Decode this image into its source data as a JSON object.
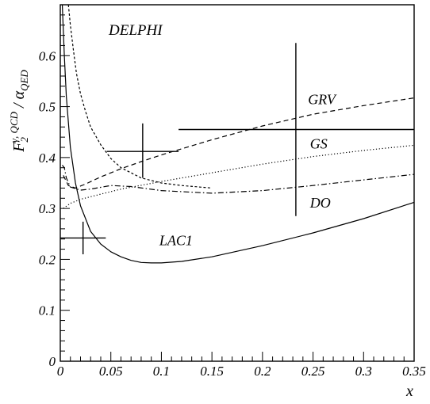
{
  "chart_data": {
    "type": "line",
    "title": "DELPHI",
    "xlabel": "x",
    "ylabel": {
      "main": "F",
      "sub": "2",
      "sup": "γ, QCD",
      "sep": " / α",
      "alpha_sub": "QED"
    },
    "xlim": [
      0,
      0.35
    ],
    "ylim": [
      0,
      0.7
    ],
    "x_ticks": [
      {
        "v": 0,
        "label": "0"
      },
      {
        "v": 0.05,
        "label": "0.05"
      },
      {
        "v": 0.1,
        "label": "0.1"
      },
      {
        "v": 0.15,
        "label": "0.15"
      },
      {
        "v": 0.2,
        "label": "0.2"
      },
      {
        "v": 0.25,
        "label": "0.25"
      },
      {
        "v": 0.3,
        "label": "0.3"
      },
      {
        "v": 0.35,
        "label": "0.35"
      }
    ],
    "y_ticks": [
      {
        "v": 0,
        "label": "0"
      },
      {
        "v": 0.1,
        "label": "0.1"
      },
      {
        "v": 0.2,
        "label": "0.2"
      },
      {
        "v": 0.3,
        "label": "0.3"
      },
      {
        "v": 0.4,
        "label": "0.4"
      },
      {
        "v": 0.5,
        "label": "0.5"
      },
      {
        "v": 0.6,
        "label": "0.6"
      }
    ],
    "series": [
      {
        "name": "GRV",
        "style": "dashed",
        "label_at": [
          0.245,
          0.505
        ],
        "x": [
          0.003,
          0.008,
          0.015,
          0.025,
          0.04,
          0.06,
          0.08,
          0.1,
          0.15,
          0.2,
          0.25,
          0.3,
          0.35
        ],
        "y": [
          0.365,
          0.345,
          0.34,
          0.348,
          0.362,
          0.378,
          0.392,
          0.405,
          0.435,
          0.462,
          0.485,
          0.502,
          0.517
        ]
      },
      {
        "name": "GS",
        "style": "dotted",
        "label_at": [
          0.247,
          0.418
        ],
        "x": [
          0.003,
          0.01,
          0.02,
          0.04,
          0.06,
          0.1,
          0.15,
          0.2,
          0.25,
          0.3,
          0.35
        ],
        "y": [
          0.3,
          0.31,
          0.318,
          0.328,
          0.338,
          0.353,
          0.37,
          0.387,
          0.402,
          0.414,
          0.424
        ]
      },
      {
        "name": "DO",
        "style": "dashdot",
        "label_at": [
          0.247,
          0.302
        ],
        "x": [
          0.002,
          0.004,
          0.006,
          0.01,
          0.02,
          0.03,
          0.05,
          0.07,
          0.1,
          0.15,
          0.2,
          0.25,
          0.3,
          0.35
        ],
        "y": [
          0.385,
          0.38,
          0.36,
          0.342,
          0.336,
          0.338,
          0.345,
          0.343,
          0.335,
          0.33,
          0.335,
          0.345,
          0.356,
          0.367
        ]
      },
      {
        "name": "LAC1",
        "style": "solid",
        "label_at": [
          0.098,
          0.228
        ],
        "x": [
          0.002,
          0.004,
          0.006,
          0.01,
          0.015,
          0.02,
          0.03,
          0.04,
          0.05,
          0.06,
          0.07,
          0.08,
          0.09,
          0.1,
          0.12,
          0.15,
          0.2,
          0.25,
          0.3,
          0.35
        ],
        "y": [
          0.7,
          0.6,
          0.52,
          0.42,
          0.35,
          0.305,
          0.255,
          0.23,
          0.215,
          0.205,
          0.198,
          0.194,
          0.193,
          0.193,
          0.196,
          0.205,
          0.227,
          0.252,
          0.28,
          0.312
        ]
      },
      {
        "name": "steep-dashed",
        "style": "dashed-fine",
        "label_at": null,
        "x": [
          0.008,
          0.01,
          0.013,
          0.016,
          0.02,
          0.025,
          0.03,
          0.04,
          0.05,
          0.06,
          0.08,
          0.1,
          0.12,
          0.15
        ],
        "y": [
          0.7,
          0.66,
          0.61,
          0.565,
          0.525,
          0.49,
          0.46,
          0.425,
          0.398,
          0.38,
          0.36,
          0.35,
          0.345,
          0.34
        ]
      }
    ],
    "data_points": [
      {
        "x": 0.0225,
        "y": 0.242,
        "xerr": [
          0.0225,
          0.0225
        ],
        "yerr": [
          0.032,
          0.032
        ]
      },
      {
        "x": 0.0815,
        "y": 0.412,
        "xerr": [
          0.0355,
          0.0355
        ],
        "yerr": [
          0.052,
          0.055
        ]
      },
      {
        "x": 0.233,
        "y": 0.455,
        "xerr": [
          0.116,
          0.117
        ],
        "yerr": [
          0.17,
          0.17
        ]
      }
    ]
  }
}
